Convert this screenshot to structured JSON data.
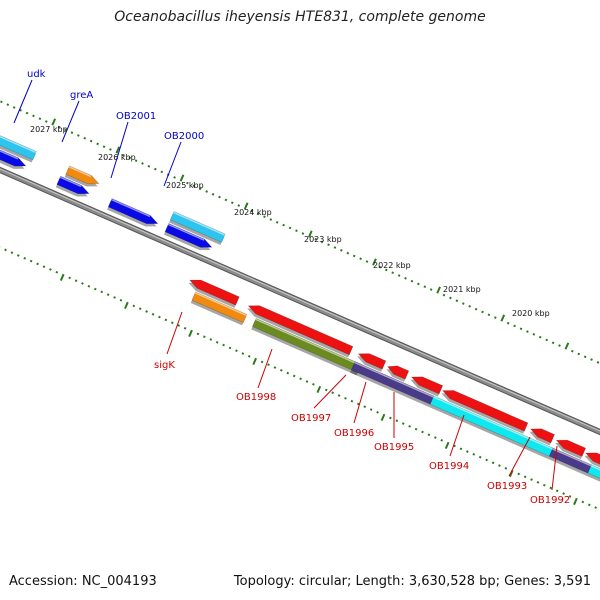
{
  "title": "Oceanobacillus iheyensis HTE831, complete genome",
  "footer": {
    "accession": "Accession: NC_004193",
    "summary": "Topology: circular; Length: 3,630,528 bp; Genes: 3,591"
  },
  "colors": {
    "backbone": "#8a8a8a",
    "tick": "#2a7a1a",
    "label_forward": "#0000cc",
    "label_reverse": "#cc0000",
    "gene_blue": "#0a0ae6",
    "gene_cyan": "#2ec4f0",
    "gene_orange": "#f08a10",
    "gene_red": "#ee1111",
    "gene_olive": "#6b8a20",
    "gene_purple": "#4a3a8a",
    "gene_aqua": "#10e8f0"
  },
  "scale": {
    "tick_labels": [
      "2027 kbp",
      "2026 kbp",
      "2025 kbp",
      "2024 kbp",
      "2023 kbp",
      "2022 kbp",
      "2021 kbp",
      "2020 kbp"
    ]
  },
  "genes": {
    "forward_labels": [
      "udk",
      "greA",
      "OB2001",
      "OB2000"
    ],
    "reverse_labels": [
      "sigK",
      "OB1998",
      "OB1997",
      "OB1996",
      "OB1995",
      "OB1994",
      "OB1993",
      "OB1992"
    ]
  }
}
